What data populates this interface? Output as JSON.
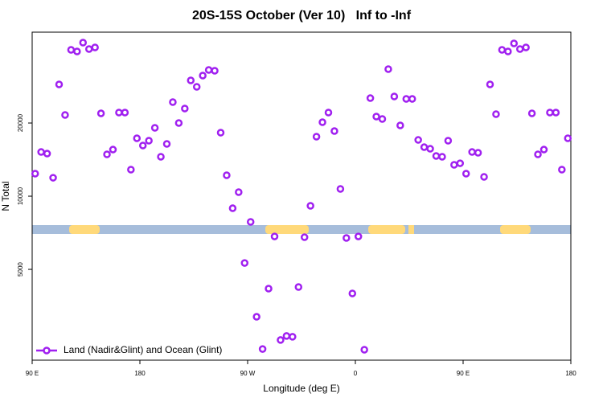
{
  "chart_data": {
    "type": "scatter",
    "title": "20S-15S October (Ver 10)   Inf to -Inf",
    "x_label": "Longitude (deg E)",
    "y_label": "N Total",
    "log_y": true,
    "legend": "lower left",
    "xlim": [
      90,
      540
    ],
    "xticks": [
      {
        "value": 90,
        "label": "90 E"
      },
      {
        "value": 180,
        "label": "180"
      },
      {
        "value": 270,
        "label": "90 W"
      },
      {
        "value": 360,
        "label": "0"
      },
      {
        "value": 450,
        "label": "90 E"
      },
      {
        "value": 540,
        "label": "180"
      }
    ],
    "ylim": [
      2115,
      47300
    ],
    "yticks": [
      5000,
      10000,
      20000
    ],
    "x": [
      92.5,
      97.5,
      102.5,
      107.5,
      112.5,
      117.5,
      122.5,
      127.5,
      132.5,
      137.5,
      142.5,
      147.5,
      152.5,
      157.5,
      162.5,
      167.5,
      172.5,
      177.5,
      182.5,
      187.5,
      192.5,
      197.5,
      202.5,
      207.5,
      212.5,
      217.5,
      222.5,
      227.5,
      232.5,
      237.5,
      242.5,
      247.5,
      252.5,
      257.5,
      262.5,
      267.5,
      272.5,
      277.5,
      282.5,
      287.5,
      292.5,
      297.5,
      302.5,
      307.5,
      312.5,
      317.5,
      322.5,
      327.5,
      332.5,
      337.5,
      342.5,
      347.5,
      352.5,
      357.5,
      362.5,
      367.5,
      372.5,
      377.5,
      382.5,
      387.5,
      392.5,
      397.5,
      402.5,
      407.5,
      412.5,
      417.5,
      422.5,
      427.5,
      432.5,
      437.5,
      442.5,
      447.5,
      452.5,
      457.5,
      462.5,
      467.5,
      472.5,
      477.5,
      482.5,
      487.5,
      492.5,
      497.5,
      502.5,
      507.5,
      512.5,
      517.5,
      522.5,
      527.5,
      532.5,
      537.5
    ],
    "series": [
      {
        "name": "Land (Nadir&Glint) and Ocean (Glint)",
        "color": "#a020f0",
        "values": [
          12380,
          15200,
          14970,
          11910,
          28830,
          21590,
          40000,
          39400,
          42830,
          40310,
          40930,
          21910,
          14860,
          15550,
          22080,
          22080,
          12860,
          17310,
          16160,
          16920,
          19110,
          14530,
          16410,
          24380,
          20000,
          22940,
          29950,
          28180,
          31350,
          33060,
          32810,
          18250,
          12190,
          8920,
          10390,
          5310,
          7840,
          3190,
          2350,
          4165,
          6830,
          2560,
          2660,
          2640,
          4230,
          6780,
          9130,
          17570,
          20150,
          22080,
          18530,
          10710,
          6730,
          3980,
          6830,
          2335,
          25320,
          21260,
          20780,
          33320,
          25720,
          19550,
          25130,
          25130,
          17040,
          15910,
          15670,
          14640,
          14530,
          16920,
          13460,
          13660,
          12380,
          15200,
          15090,
          12010,
          28830,
          21750,
          40000,
          39400,
          42520,
          40310,
          40930,
          21910,
          14860,
          15550,
          22080,
          22080,
          12860,
          17310
        ]
      }
    ]
  }
}
